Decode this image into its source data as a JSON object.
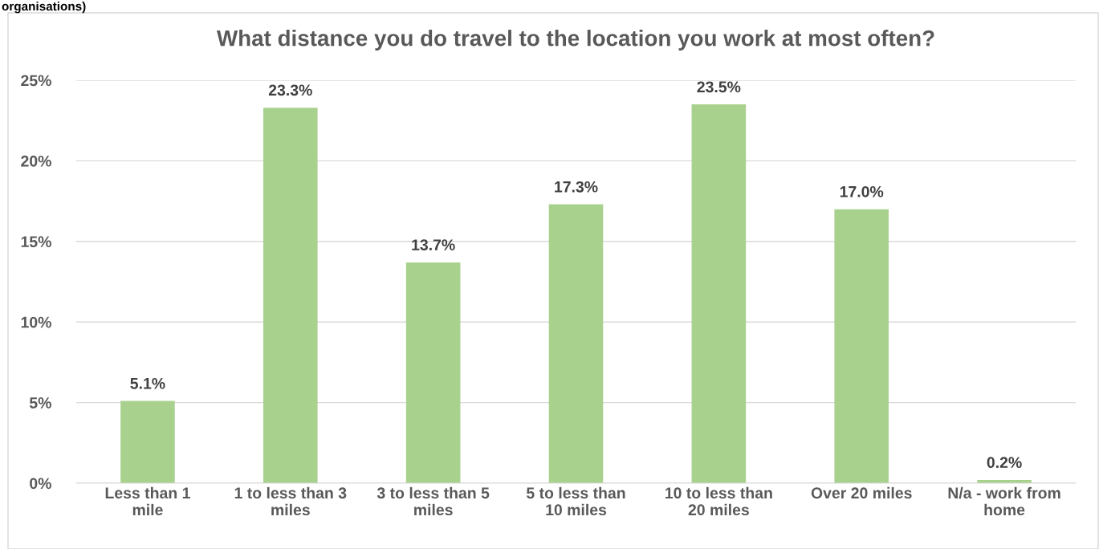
{
  "chart_data": {
    "type": "bar",
    "title": "What distance you do travel to the location you work at most often?",
    "annotations": [
      "organisations)"
    ],
    "categories": [
      "Less than 1\nmile",
      "1 to less than 3\nmiles",
      "3 to less than 5\nmiles",
      "5 to less than\n10 miles",
      "10 to less than\n20 miles",
      "Over 20 miles",
      "N/a - work from\nhome"
    ],
    "values": [
      5.1,
      23.3,
      13.7,
      17.3,
      23.5,
      17.0,
      0.2
    ],
    "value_labels": [
      "5.1%",
      "23.3%",
      "13.7%",
      "17.3%",
      "23.5%",
      "17.0%",
      "0.2%"
    ],
    "color": "#a9d18e",
    "ylim": [
      0,
      25
    ],
    "yticks": [
      {
        "value": 0,
        "label": "0%"
      },
      {
        "value": 5,
        "label": "5%"
      },
      {
        "value": 10,
        "label": "10%"
      },
      {
        "value": 15,
        "label": "15%"
      },
      {
        "value": 20,
        "label": "20%"
      },
      {
        "value": 25,
        "label": "25%"
      }
    ],
    "grid": "y",
    "legend": false
  }
}
